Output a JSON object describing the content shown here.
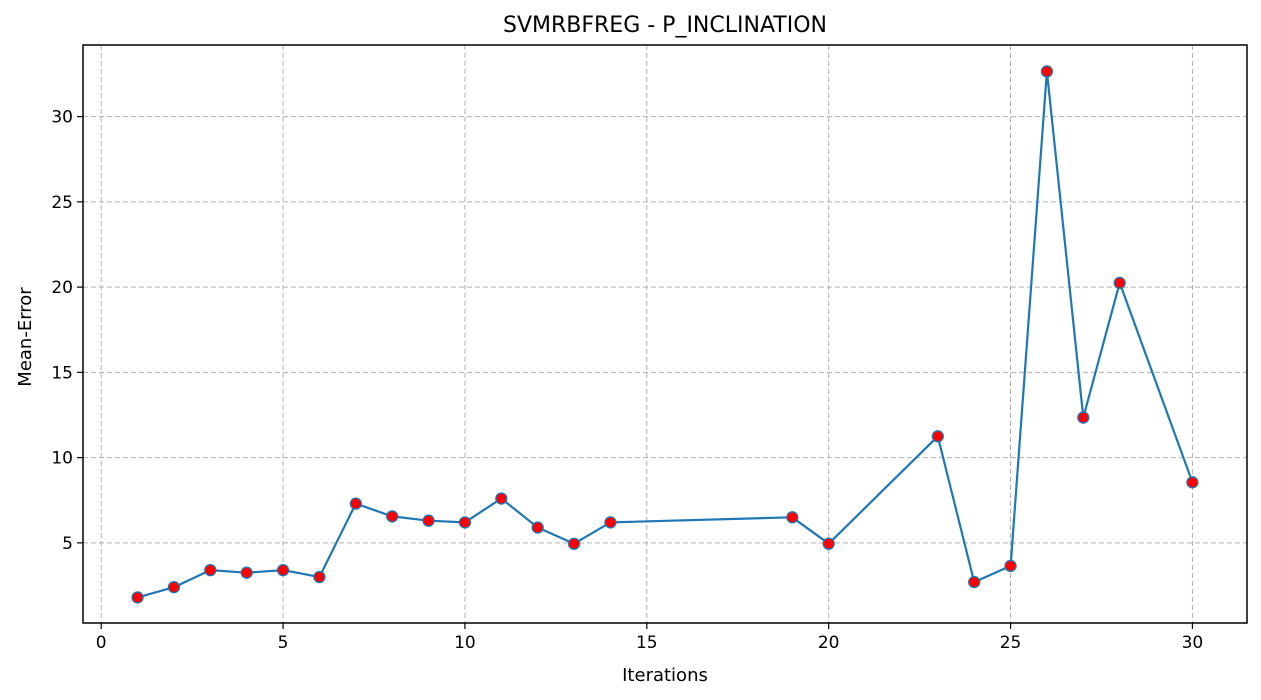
{
  "chart_data": {
    "type": "line",
    "title": "SVMRBFREG - P_INCLINATION",
    "xlabel": "Iterations",
    "ylabel": "Mean-Error",
    "xlim": [
      -0.5,
      31.5
    ],
    "ylim": [
      0.3,
      34.2
    ],
    "xticks": [
      0,
      5,
      10,
      15,
      20,
      25,
      30
    ],
    "yticks": [
      5,
      10,
      15,
      20,
      25,
      30
    ],
    "grid": true,
    "line_color": "#1f77b4",
    "marker_color": "#ff0000",
    "series": [
      {
        "x": [
          1,
          2,
          3,
          4,
          5,
          6,
          7,
          8,
          9,
          10,
          11,
          12,
          13,
          14,
          19,
          20,
          23,
          24,
          25,
          26,
          27,
          28,
          30
        ],
        "y": [
          1.8,
          2.4,
          3.4,
          3.25,
          3.4,
          3.0,
          7.3,
          6.55,
          6.3,
          6.2,
          7.6,
          5.9,
          4.95,
          6.2,
          6.5,
          4.95,
          11.25,
          2.7,
          3.65,
          32.65,
          12.35,
          20.25,
          8.55
        ]
      }
    ]
  }
}
